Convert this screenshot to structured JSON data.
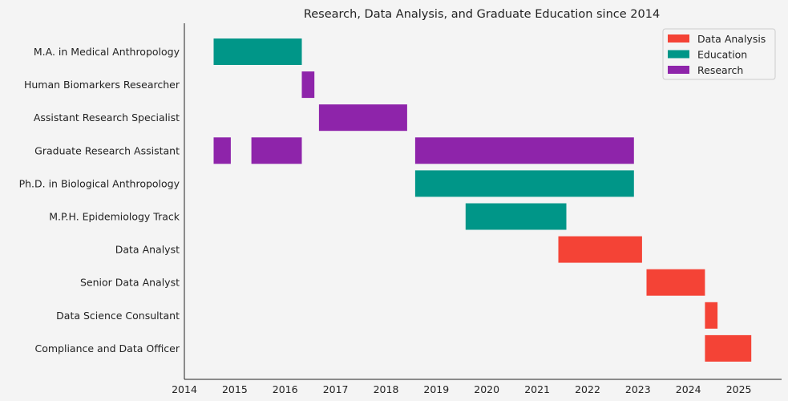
{
  "chart_data": {
    "type": "gantt",
    "title": "Research, Data Analysis, and Graduate Education since 2014",
    "xlabel": "",
    "ylabel": "",
    "xlim": [
      2014.0,
      2025.85
    ],
    "x_ticks": [
      2014,
      2015,
      2016,
      2017,
      2018,
      2019,
      2020,
      2021,
      2022,
      2023,
      2024,
      2025
    ],
    "grid": false,
    "legend_position": "top-right",
    "categories": [
      "M.A. in Medical Anthropology",
      "Human Biomarkers Researcher",
      "Assistant Research Specialist",
      "Graduate Research Assistant",
      "Ph.D. in Biological Anthropology",
      "M.P.H. Epidemiology Track",
      "Data Analyst",
      "Senior Data Analyst",
      "Data Science Consultant",
      "Compliance and Data Officer"
    ],
    "series": [
      {
        "name": "Data Analysis",
        "color": "#f44336"
      },
      {
        "name": "Education",
        "color": "#009688"
      },
      {
        "name": "Research",
        "color": "#8e24aa"
      }
    ],
    "tasks": [
      {
        "row": "M.A. in Medical Anthropology",
        "series": "Education",
        "start": 2014.58,
        "end": 2016.33
      },
      {
        "row": "Human Biomarkers Researcher",
        "series": "Research",
        "start": 2016.33,
        "end": 2016.58
      },
      {
        "row": "Assistant Research Specialist",
        "series": "Research",
        "start": 2016.67,
        "end": 2018.42
      },
      {
        "row": "Graduate Research Assistant",
        "series": "Research",
        "start": 2014.58,
        "end": 2014.92
      },
      {
        "row": "Graduate Research Assistant",
        "series": "Research",
        "start": 2015.33,
        "end": 2016.33
      },
      {
        "row": "Graduate Research Assistant",
        "series": "Research",
        "start": 2018.58,
        "end": 2022.92
      },
      {
        "row": "Ph.D. in Biological Anthropology",
        "series": "Education",
        "start": 2018.58,
        "end": 2022.92
      },
      {
        "row": "M.P.H. Epidemiology Track",
        "series": "Education",
        "start": 2019.58,
        "end": 2021.58
      },
      {
        "row": "Data Analyst",
        "series": "Data Analysis",
        "start": 2021.42,
        "end": 2023.08
      },
      {
        "row": "Senior Data Analyst",
        "series": "Data Analysis",
        "start": 2023.17,
        "end": 2024.33
      },
      {
        "row": "Data Science Consultant",
        "series": "Data Analysis",
        "start": 2024.33,
        "end": 2024.58
      },
      {
        "row": "Compliance and Data Officer",
        "series": "Data Analysis",
        "start": 2024.33,
        "end": 2025.25
      }
    ]
  }
}
